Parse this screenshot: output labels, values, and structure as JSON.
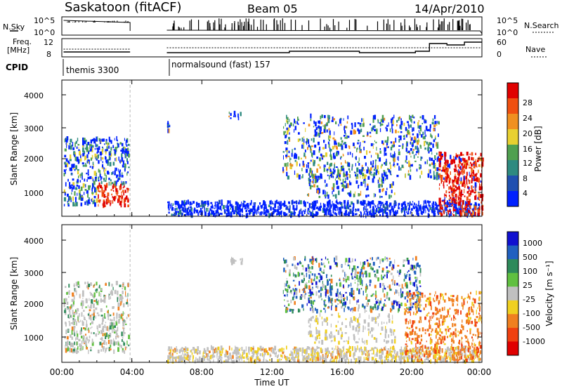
{
  "header": {
    "title": "Saskatoon (fitACF)",
    "beam": "Beam 05",
    "date": "14/Apr/2010"
  },
  "strip": {
    "nsky_label": "N.Sky",
    "nsky_ticks": [
      "10^5",
      "10^0"
    ],
    "nsearch_label": "N.Search",
    "nsearch_ticks": [
      "10^5",
      "10^0"
    ],
    "freq_label_1": "Freq.",
    "freq_label_2": "[MHz]",
    "freq_ticks": [
      "12",
      "8"
    ],
    "nave_label": "Nave",
    "nave_ticks": [
      "60",
      "0"
    ],
    "cpid_label": "CPID",
    "cpid_1": "themis 3300",
    "cpid_2": "normalsound (fast) 157"
  },
  "x_tick_labels": [
    "00:00",
    "04:00",
    "08:00",
    "12:00",
    "16:00",
    "20:00",
    "00:00"
  ],
  "x_label": "Time UT",
  "y_label": "Slant Range [km]",
  "y_tick_labels": [
    "1000",
    "2000",
    "3000",
    "4000"
  ],
  "chart_data": [
    {
      "type": "heatmap",
      "name": "power",
      "xlabel": "Time UT",
      "ylabel": "Slant Range [km]",
      "xlim_hours": [
        0,
        24
      ],
      "ylim": [
        180,
        4550
      ],
      "colorbar": {
        "label": "Power [dB]",
        "ticks": [
          "4",
          "8",
          "12",
          "16",
          "20",
          "24",
          "28"
        ],
        "range": [
          0,
          30
        ],
        "colors": [
          "#0020ff",
          "#2050b0",
          "#2e8a80",
          "#50a050",
          "#e8d030",
          "#f09020",
          "#f05010",
          "#e00000"
        ]
      },
      "regions": [
        {
          "t": [
            0.0,
            3.9
          ],
          "r": [
            500,
            2700
          ],
          "value": "4-28"
        },
        {
          "t": [
            6.0,
            24.0
          ],
          "r": [
            180,
            700
          ],
          "value": "4-12"
        },
        {
          "t": [
            12.5,
            24.0
          ],
          "r": [
            800,
            3500
          ],
          "value": "4-24"
        },
        {
          "t": [
            21.5,
            24.0
          ],
          "r": [
            200,
            2200
          ],
          "value": "20-30"
        }
      ]
    },
    {
      "type": "heatmap",
      "name": "velocity",
      "xlabel": "Time UT",
      "ylabel": "Slant Range [km]",
      "xlim_hours": [
        0,
        24
      ],
      "ylim": [
        180,
        4550
      ],
      "colorbar": {
        "label": "Velocity [m s⁻¹]",
        "ticks": [
          "1000",
          "500",
          "100",
          "25",
          "-25",
          "-100",
          "-500",
          "-1000"
        ],
        "range": [
          -1000,
          1000
        ],
        "colors": [
          "#1010d0",
          "#2060c0",
          "#2e8a5a",
          "#60c040",
          "#c0c0c0",
          "#f0d020",
          "#f08020",
          "#f04010",
          "#e00000"
        ]
      },
      "regions": [
        {
          "t": [
            0.0,
            3.9
          ],
          "r": [
            500,
            2700
          ],
          "value": "-25 to 25"
        },
        {
          "t": [
            6.0,
            24.0
          ],
          "r": [
            180,
            700
          ],
          "value": "-25 to -100"
        },
        {
          "t": [
            12.5,
            20.5
          ],
          "r": [
            1800,
            3500
          ],
          "value": "-500 to 500"
        },
        {
          "t": [
            19.5,
            24.0
          ],
          "r": [
            200,
            2400
          ],
          "value": "-100 to -500"
        }
      ]
    }
  ]
}
